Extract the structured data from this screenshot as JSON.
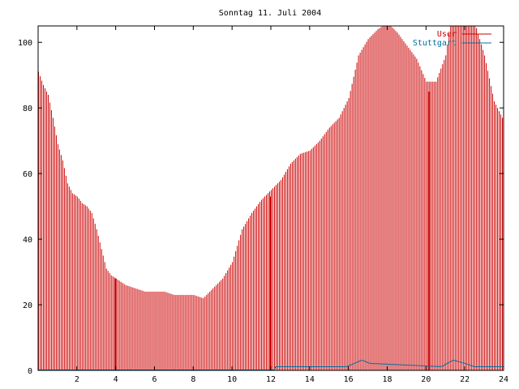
{
  "chart_data": {
    "type": "bar",
    "title": "Sonntag 11. Juli 2004",
    "xlabel": "",
    "ylabel": "",
    "xlim": [
      0,
      24
    ],
    "ylim": [
      0,
      105
    ],
    "grid": false,
    "legend_position": "top-right",
    "x_ticks": [
      2,
      4,
      6,
      8,
      10,
      12,
      14,
      16,
      18,
      20,
      22,
      24
    ],
    "y_ticks": [
      0,
      20,
      40,
      60,
      80,
      100
    ],
    "colors": {
      "user": "#cc0000",
      "stuttgart": "#0070a0",
      "axis": "#000000"
    },
    "series": [
      {
        "name": "User",
        "style": "impulses",
        "profile": [
          [
            0,
            91
          ],
          [
            0.25,
            87
          ],
          [
            0.5,
            84
          ],
          [
            0.75,
            77
          ],
          [
            1.0,
            69
          ],
          [
            1.25,
            64
          ],
          [
            1.5,
            57
          ],
          [
            1.75,
            54
          ],
          [
            2.0,
            53
          ],
          [
            2.25,
            51
          ],
          [
            2.5,
            50
          ],
          [
            2.75,
            48
          ],
          [
            3.0,
            43
          ],
          [
            3.25,
            37
          ],
          [
            3.5,
            31
          ],
          [
            3.75,
            29
          ],
          [
            4.0,
            28
          ],
          [
            4.5,
            26
          ],
          [
            5.0,
            25
          ],
          [
            5.5,
            24
          ],
          [
            6.0,
            24
          ],
          [
            6.5,
            24
          ],
          [
            7.0,
            23
          ],
          [
            7.5,
            23
          ],
          [
            8.0,
            23
          ],
          [
            8.5,
            22
          ],
          [
            9.0,
            25
          ],
          [
            9.5,
            28
          ],
          [
            10.0,
            33
          ],
          [
            10.5,
            43
          ],
          [
            11.0,
            48
          ],
          [
            11.5,
            52
          ],
          [
            12.0,
            55
          ],
          [
            12.5,
            58
          ],
          [
            13.0,
            63
          ],
          [
            13.5,
            66
          ],
          [
            14.0,
            67
          ],
          [
            14.5,
            70
          ],
          [
            15.0,
            74
          ],
          [
            15.5,
            77
          ],
          [
            16.0,
            83
          ],
          [
            16.5,
            96
          ],
          [
            17.0,
            101
          ],
          [
            17.5,
            104
          ],
          [
            18.0,
            106
          ],
          [
            18.5,
            103
          ],
          [
            19.0,
            99
          ],
          [
            19.5,
            95
          ],
          [
            20.0,
            88
          ],
          [
            20.5,
            88
          ],
          [
            21.0,
            96
          ],
          [
            21.25,
            106
          ],
          [
            22.5,
            106
          ],
          [
            23.0,
            96
          ],
          [
            23.5,
            82
          ],
          [
            24.0,
            76
          ]
        ],
        "spikes": [
          {
            "x": 4.0,
            "value": 28
          },
          {
            "x": 12.0,
            "value": 53
          },
          {
            "x": 20.17,
            "value": 85
          }
        ]
      },
      {
        "name": "Stuttgart",
        "style": "line",
        "profile": [
          [
            0,
            0
          ],
          [
            12.2,
            0
          ],
          [
            12.25,
            1
          ],
          [
            15.9,
            1
          ],
          [
            16.3,
            2
          ],
          [
            16.7,
            3
          ],
          [
            17.1,
            2
          ],
          [
            20.8,
            1
          ],
          [
            21.4,
            3
          ],
          [
            22.0,
            2
          ],
          [
            22.5,
            1
          ],
          [
            24.0,
            1
          ]
        ]
      }
    ]
  }
}
